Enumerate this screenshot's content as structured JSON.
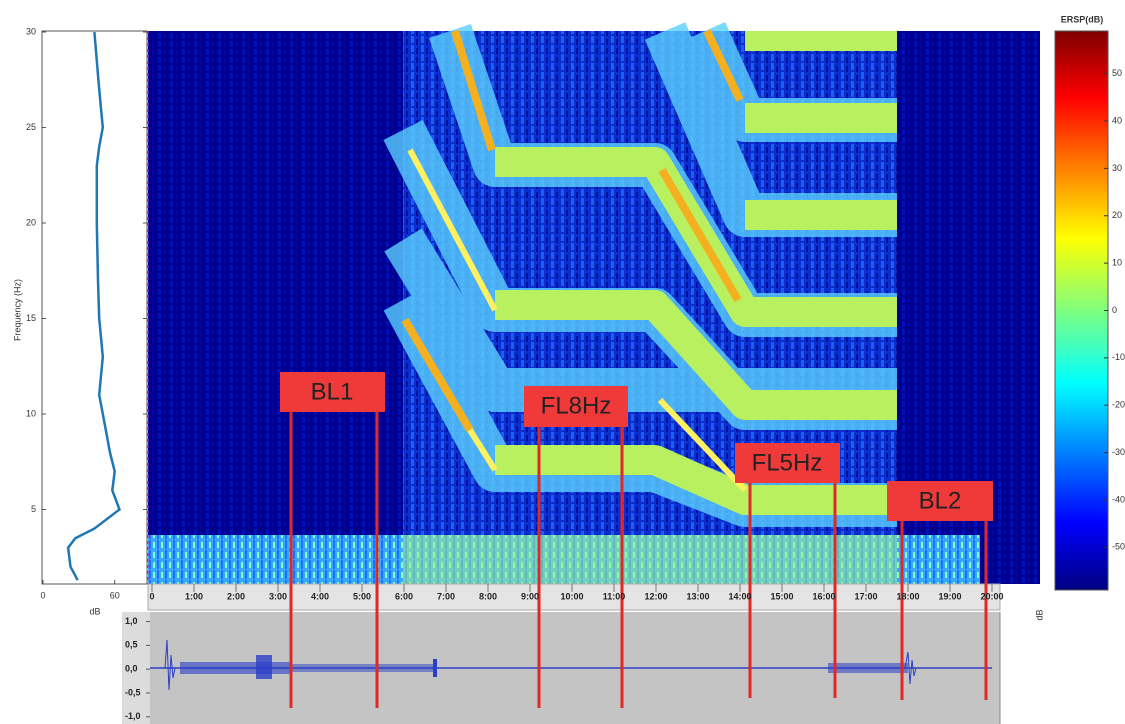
{
  "profile": {
    "x_label": "dB",
    "xlim": [
      0,
      87
    ],
    "xticks": [
      0,
      60
    ],
    "frequency": [
      30,
      27,
      25,
      24,
      23,
      20,
      17,
      15,
      13,
      11,
      10,
      9,
      8,
      7,
      6,
      5,
      4,
      3.5,
      3,
      2,
      1.3
    ],
    "db": [
      43,
      47,
      50,
      47,
      45,
      45,
      46,
      47,
      50,
      47,
      50,
      53,
      56,
      60,
      58,
      64,
      43,
      27,
      21,
      23,
      29
    ]
  },
  "spectrogram": {
    "y_label": "Frequency (Hz)",
    "ylim": [
      1.1,
      30
    ],
    "yticks": [
      5,
      10,
      15,
      20,
      25,
      30
    ]
  },
  "timeline": {
    "labels": [
      "0",
      "1:00",
      "2:00",
      "3:00",
      "4:00",
      "5:00",
      "6:00",
      "7:00",
      "8:00",
      "9:00",
      "10:00",
      "11:00",
      "12:00",
      "13:00",
      "14:00",
      "15:00",
      "16:00",
      "17:00",
      "18:00",
      "19:00",
      "20:00"
    ]
  },
  "colorbar": {
    "title": "ERSP(dB)",
    "side_label": "dB",
    "clim": [
      -59,
      59
    ],
    "ticks": [
      50,
      40,
      30,
      20,
      10,
      0,
      -10,
      -20,
      -30,
      -40,
      -50
    ]
  },
  "waveform": {
    "ylim": [
      -1.15,
      1.2
    ],
    "yticks": [
      {
        "value": 1,
        "label": "1,0"
      },
      {
        "value": 0.5,
        "label": "0,5"
      },
      {
        "value": 0,
        "label": "0,0"
      },
      {
        "value": -0.5,
        "label": "-0,5"
      },
      {
        "value": -1,
        "label": "-1,0"
      }
    ]
  },
  "annotations": [
    "BL1",
    "FL8Hz",
    "FL5Hz",
    "BL2"
  ]
}
